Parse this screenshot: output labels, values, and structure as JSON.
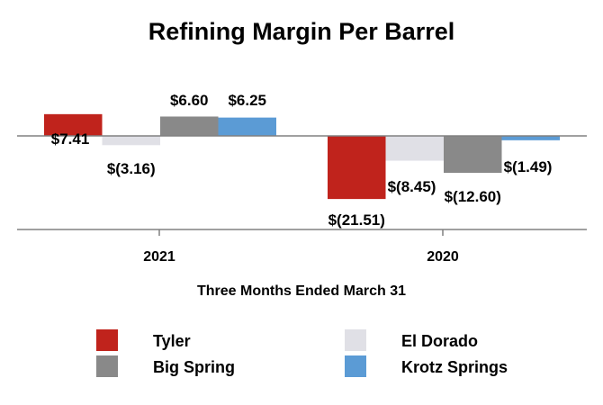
{
  "chart_data": {
    "type": "bar",
    "title": "Refining Margin Per Barrel",
    "xlabel": "Three Months Ended March 31",
    "ylabel": "",
    "ylim": [
      -27,
      14
    ],
    "grid": false,
    "legend": "bottom",
    "categories": [
      "2021",
      "2020"
    ],
    "series": [
      {
        "name": "Tyler",
        "color": "#c0231c",
        "values": [
          7.41,
          -21.51
        ],
        "labels": [
          "$7.41",
          "$(21.51)"
        ]
      },
      {
        "name": "El Dorado",
        "color": "#e0e0e6",
        "values": [
          -3.16,
          -8.45
        ],
        "labels": [
          "$(3.16)",
          "$(8.45)"
        ]
      },
      {
        "name": "Big Spring",
        "color": "#898989",
        "values": [
          6.6,
          -12.6
        ],
        "labels": [
          "$6.60",
          "$(12.60)"
        ]
      },
      {
        "name": "Krotz Springs",
        "color": "#5b9bd5",
        "values": [
          6.25,
          -1.49
        ],
        "labels": [
          "$6.25",
          "$(1.49)"
        ]
      }
    ]
  }
}
